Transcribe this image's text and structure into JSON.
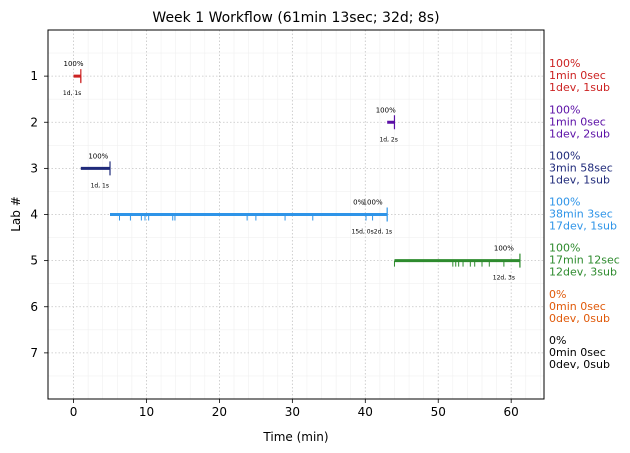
{
  "chart_data": {
    "type": "timeline",
    "title": "Week 1 Workflow (61min 13sec; 32d; 8s)",
    "xlabel": "Time (min)",
    "ylabel": "Lab #",
    "xlim": [
      -3.5,
      64.5
    ],
    "ylim": [
      0,
      8
    ],
    "y_inverted": true,
    "grid": true,
    "x_ticks": [
      0,
      10,
      20,
      30,
      40,
      50,
      60
    ],
    "y_ticks": [
      1,
      2,
      3,
      4,
      5,
      6,
      7
    ],
    "labs": [
      {
        "lab": 1,
        "color": "#cc2222",
        "start": 0.0,
        "end": 1.0,
        "ticks": [
          1.0
        ],
        "pct_labels": [
          {
            "x": 0.0,
            "text": "100%"
          }
        ],
        "sub_label": "1d, 1s",
        "sub_x": -0.2,
        "side": [
          "100%",
          "1min 0sec",
          "1dev, 1sub"
        ]
      },
      {
        "lab": 2,
        "color": "#5b0fa6",
        "start": 43.0,
        "end": 44.0,
        "ticks": [
          44.0
        ],
        "pct_labels": [
          {
            "x": 42.8,
            "text": "100%"
          }
        ],
        "sub_label": "1d, 2s",
        "sub_x": 43.2,
        "side": [
          "100%",
          "1min 0sec",
          "1dev, 2sub"
        ]
      },
      {
        "lab": 3,
        "color": "#1f2a7a",
        "start": 1.0,
        "end": 5.0,
        "ticks": [
          5.0
        ],
        "pct_labels": [
          {
            "x": 3.4,
            "text": "100%"
          }
        ],
        "sub_label": "1d, 1s",
        "sub_x": 3.6,
        "side": [
          "100%",
          "3min 58sec",
          "1dev, 1sub"
        ]
      },
      {
        "lab": 4,
        "color": "#2e94e8",
        "start": 5.0,
        "end": 43.0,
        "ticks": [
          6.3,
          7.8,
          9.3,
          9.8,
          10.3,
          13.6,
          13.9,
          23.8,
          25.0,
          29.0,
          32.8,
          40.1,
          41.0
        ],
        "pct_labels": [
          {
            "x": 39.1,
            "text": "0%"
          },
          {
            "x": 41.0,
            "text": "100%"
          }
        ],
        "sub_label": "15d, 0s2d, 1s",
        "sub_x": 40.9,
        "side": [
          "100%",
          "38min 3sec",
          "17dev, 1sub"
        ]
      },
      {
        "lab": 5,
        "color": "#2e8b2e",
        "start": 44.0,
        "end": 61.2,
        "ticks": [
          44.0,
          52.0,
          52.4,
          52.8,
          53.4,
          54.4,
          55.0,
          56.0,
          57.0,
          59.0,
          61.2
        ],
        "pct_labels": [
          {
            "x": 59.0,
            "text": "100%"
          }
        ],
        "sub_label": "12d, 3s",
        "sub_x": 59.0,
        "side": [
          "100%",
          "17min 12sec",
          "12dev, 3sub"
        ]
      },
      {
        "lab": 6,
        "color": "#e05a0a",
        "start": null,
        "end": null,
        "ticks": [],
        "pct_labels": [],
        "sub_label": "",
        "side": [
          "0%",
          "0min 0sec",
          "0dev, 0sub"
        ]
      },
      {
        "lab": 7,
        "color": "#000000",
        "start": null,
        "end": null,
        "ticks": [],
        "pct_labels": [],
        "sub_label": "",
        "side": [
          "0%",
          "0min 0sec",
          "0dev, 0sub"
        ]
      }
    ]
  }
}
